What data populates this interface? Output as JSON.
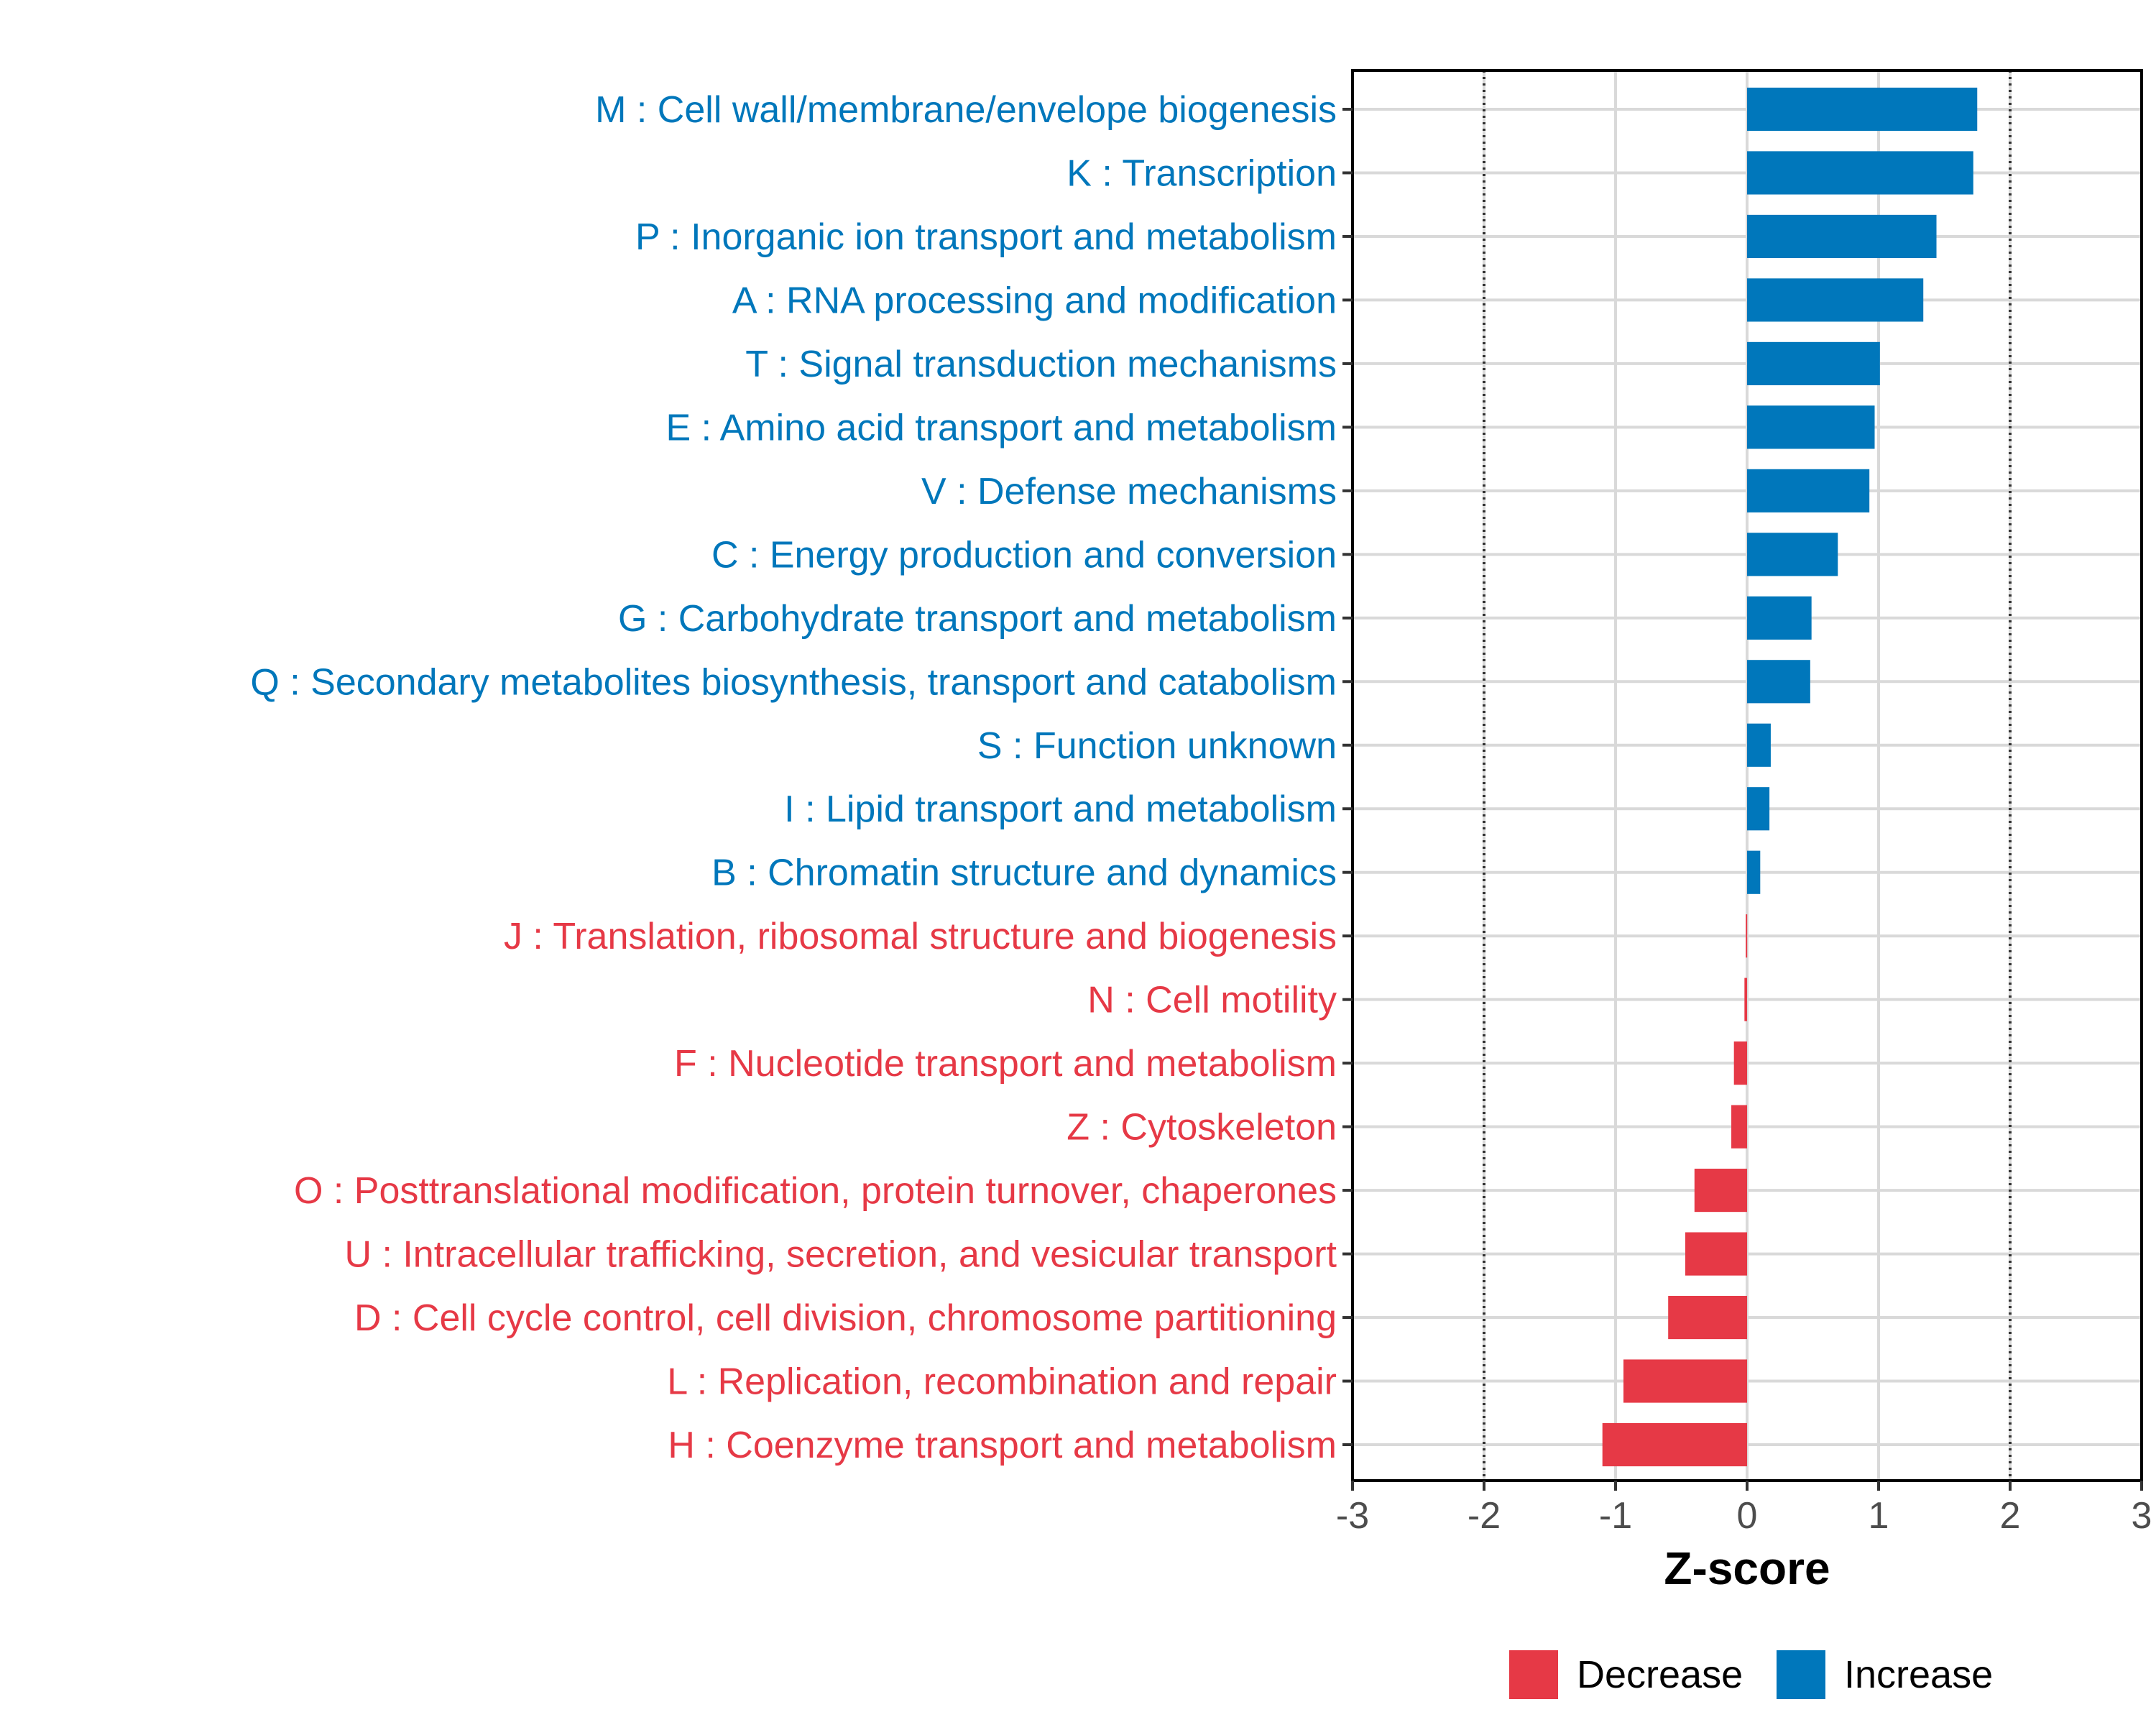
{
  "chart_data": {
    "type": "bar",
    "orientation": "horizontal",
    "xlabel": "Z-score",
    "xlim": [
      -3,
      3
    ],
    "xticks": [
      -3,
      -2,
      -1,
      0,
      1,
      2,
      3
    ],
    "xtick_labels": [
      "-3",
      "-2",
      "-1",
      "0",
      "1",
      "2",
      "3"
    ],
    "reference_lines": [
      -2,
      2
    ],
    "colors": {
      "Increase": "#0077BB",
      "Decrease": "#E63946"
    },
    "legend": {
      "position": "bottom",
      "entries": [
        "Decrease",
        "Increase"
      ]
    },
    "categories": [
      "M : Cell wall/membrane/envelope biogenesis",
      "K : Transcription",
      "P : Inorganic ion transport and metabolism",
      "A : RNA processing and modification",
      "T : Signal transduction mechanisms",
      "E : Amino acid transport and metabolism",
      "V : Defense mechanisms",
      "C : Energy production and conversion",
      "G : Carbohydrate transport and metabolism",
      "Q : Secondary metabolites biosynthesis, transport and catabolism",
      "S : Function unknown",
      "I : Lipid transport and metabolism",
      "B : Chromatin structure and dynamics",
      "J : Translation, ribosomal structure and biogenesis",
      "N : Cell motility",
      "F : Nucleotide transport and metabolism",
      "Z : Cytoskeleton",
      "O : Posttranslational modification, protein turnover, chaperones",
      "U : Intracellular trafficking, secretion, and vesicular transport",
      "D : Cell cycle control, cell division, chromosome partitioning",
      "L : Replication, recombination and repair",
      "H : Coenzyme transport and metabolism"
    ],
    "values": [
      1.75,
      1.72,
      1.44,
      1.34,
      1.01,
      0.97,
      0.93,
      0.69,
      0.49,
      0.48,
      0.18,
      0.17,
      0.1,
      -0.01,
      -0.02,
      -0.1,
      -0.12,
      -0.4,
      -0.47,
      -0.6,
      -0.94,
      -1.1
    ],
    "groups": [
      "Increase",
      "Increase",
      "Increase",
      "Increase",
      "Increase",
      "Increase",
      "Increase",
      "Increase",
      "Increase",
      "Increase",
      "Increase",
      "Increase",
      "Increase",
      "Decrease",
      "Decrease",
      "Decrease",
      "Decrease",
      "Decrease",
      "Decrease",
      "Decrease",
      "Decrease",
      "Decrease"
    ]
  }
}
